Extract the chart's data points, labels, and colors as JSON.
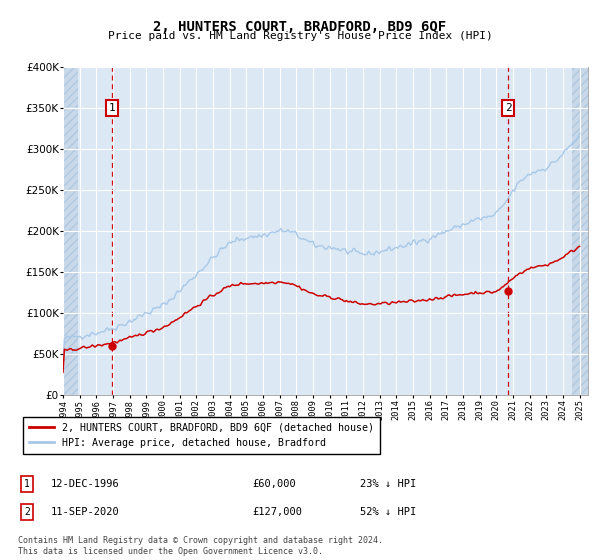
{
  "title": "2, HUNTERS COURT, BRADFORD, BD9 6QF",
  "subtitle": "Price paid vs. HM Land Registry's House Price Index (HPI)",
  "legend_line1": "2, HUNTERS COURT, BRADFORD, BD9 6QF (detached house)",
  "legend_line2": "HPI: Average price, detached house, Bradford",
  "annotation_footer": "Contains HM Land Registry data © Crown copyright and database right 2024.\nThis data is licensed under the Open Government Licence v3.0.",
  "purchase1_date": "12-DEC-1996",
  "purchase1_price": 60000,
  "purchase1_label": "23% ↓ HPI",
  "purchase2_date": "11-SEP-2020",
  "purchase2_price": 127000,
  "purchase2_label": "52% ↓ HPI",
  "purchase1_x": 1996.95,
  "purchase2_x": 2020.7,
  "ylim": [
    0,
    400000
  ],
  "yticks": [
    0,
    50000,
    100000,
    150000,
    200000,
    250000,
    300000,
    350000,
    400000
  ],
  "hpi_color": "#a8c8e8",
  "price_color": "#cc0000",
  "marker_color": "#cc0000",
  "bg_plot": "#dce9f5",
  "bg_hatched": "#c8d8e8",
  "grid_color": "#ffffff",
  "annotation_box_color": "#cc0000",
  "dashed_line_color": "#cc0000",
  "xlim_left": 1994.0,
  "xlim_right": 2025.5,
  "hatch_left_end": 1994.9,
  "hatch_right_start": 2024.55
}
